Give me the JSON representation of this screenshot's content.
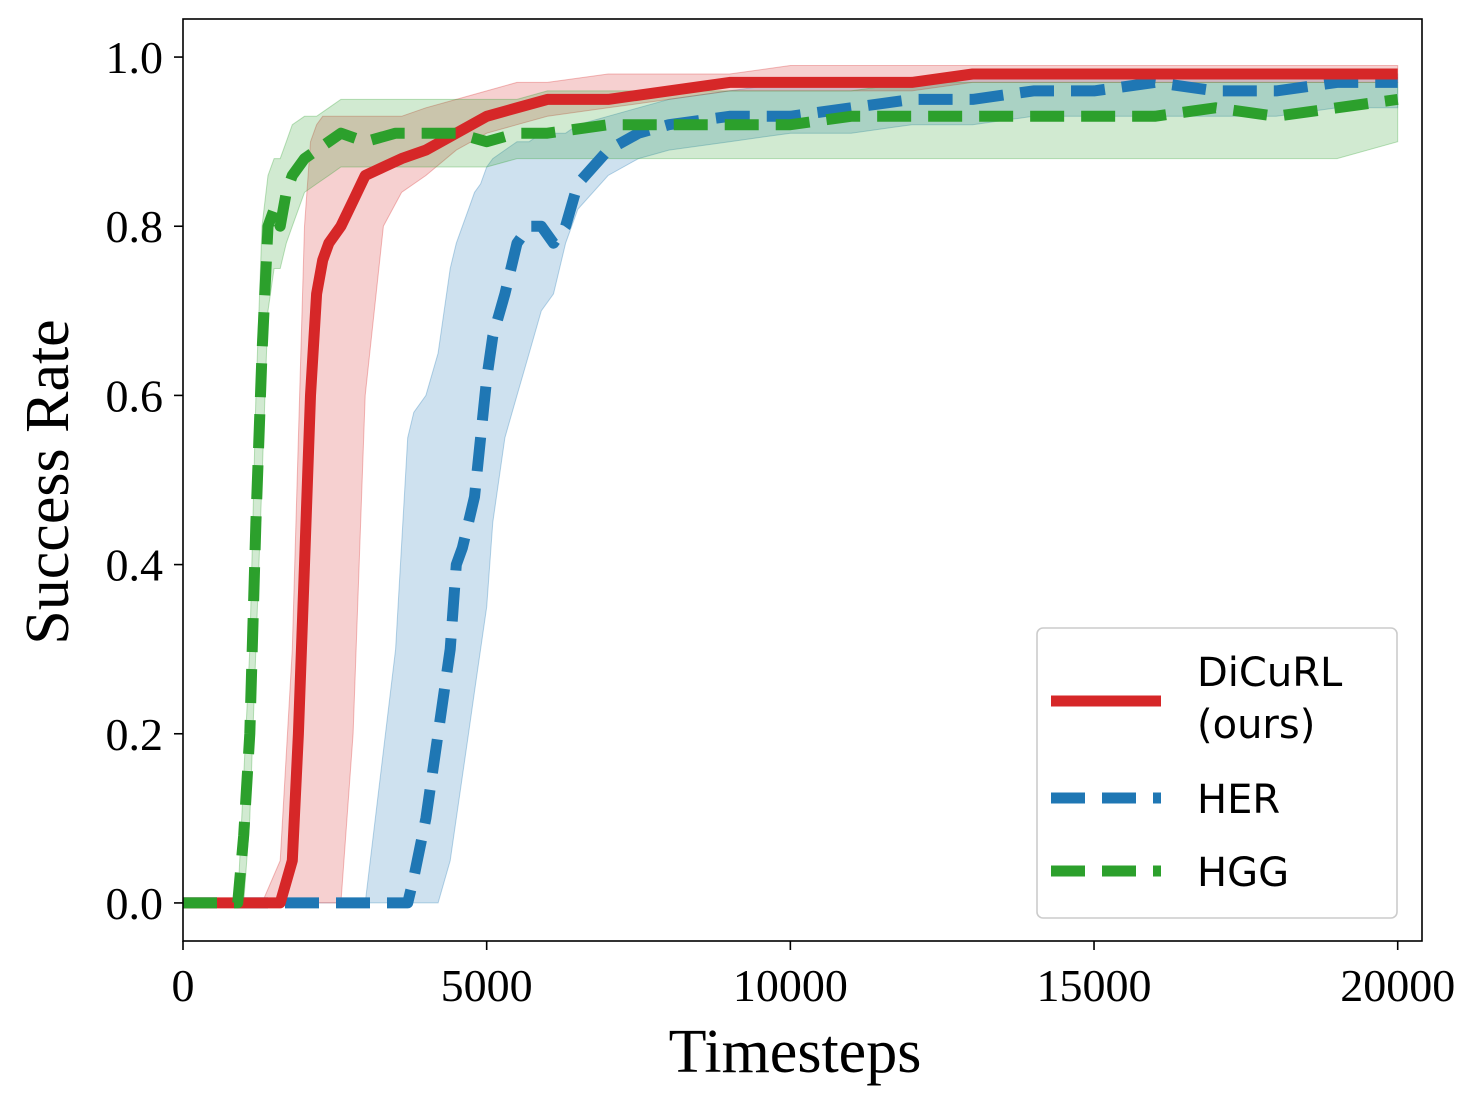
{
  "chart_data": {
    "type": "line",
    "xlabel": "Timesteps",
    "ylabel": "Success Rate",
    "xlim": [
      0,
      20400
    ],
    "ylim": [
      -0.045,
      1.045
    ],
    "xticks": [
      0,
      5000,
      10000,
      15000,
      20000
    ],
    "xtick_labels": [
      "0",
      "5000",
      "10000",
      "15000",
      "20000"
    ],
    "yticks": [
      0.0,
      0.2,
      0.4,
      0.6,
      0.8,
      1.0
    ],
    "ytick_labels": [
      "0.0",
      "0.2",
      "0.4",
      "0.6",
      "0.8",
      "1.0"
    ],
    "grid": false,
    "legend_position": "lower-right",
    "series": [
      {
        "name": "DiCuRL\n(ours)",
        "color": "#d62728",
        "linestyle": "solid",
        "x": [
          0,
          900,
          1300,
          1600,
          1800,
          1900,
          2000,
          2100,
          2200,
          2300,
          2400,
          2600,
          2800,
          3000,
          3300,
          3600,
          4000,
          4500,
          5000,
          5500,
          6000,
          7000,
          8000,
          9000,
          10000,
          11000,
          12000,
          13000,
          14000,
          15000,
          16000,
          17000,
          18000,
          19000,
          20000
        ],
        "y": [
          0.0,
          0.0,
          0.0,
          0.0,
          0.05,
          0.2,
          0.4,
          0.6,
          0.72,
          0.76,
          0.78,
          0.8,
          0.83,
          0.86,
          0.87,
          0.88,
          0.89,
          0.91,
          0.93,
          0.94,
          0.95,
          0.95,
          0.96,
          0.97,
          0.97,
          0.97,
          0.97,
          0.98,
          0.98,
          0.98,
          0.98,
          0.98,
          0.98,
          0.98,
          0.98
        ],
        "lower": [
          0.0,
          0.0,
          0.0,
          0.0,
          0.0,
          0.0,
          0.0,
          0.0,
          0.0,
          0.0,
          0.0,
          0.0,
          0.2,
          0.6,
          0.8,
          0.84,
          0.86,
          0.89,
          0.91,
          0.92,
          0.93,
          0.94,
          0.95,
          0.96,
          0.96,
          0.96,
          0.96,
          0.97,
          0.97,
          0.97,
          0.97,
          0.97,
          0.97,
          0.97,
          0.97
        ],
        "upper": [
          0.0,
          0.0,
          0.0,
          0.05,
          0.3,
          0.55,
          0.8,
          0.9,
          0.92,
          0.93,
          0.93,
          0.93,
          0.93,
          0.93,
          0.93,
          0.93,
          0.94,
          0.95,
          0.96,
          0.97,
          0.97,
          0.98,
          0.98,
          0.98,
          0.99,
          0.99,
          0.99,
          0.99,
          0.99,
          0.99,
          0.99,
          0.99,
          0.99,
          0.99,
          0.99
        ]
      },
      {
        "name": "HER",
        "color": "#1f77b4",
        "linestyle": "dashed",
        "x": [
          0,
          1000,
          2000,
          2500,
          3000,
          3500,
          3700,
          3800,
          4000,
          4200,
          4400,
          4500,
          4600,
          4700,
          4800,
          4900,
          5000,
          5100,
          5300,
          5500,
          5700,
          5900,
          6100,
          6300,
          6500,
          7000,
          7500,
          8000,
          9000,
          10000,
          11000,
          12000,
          13000,
          14000,
          15000,
          16000,
          17000,
          18000,
          19000,
          20000
        ],
        "y": [
          0.0,
          0.0,
          0.0,
          0.0,
          0.0,
          0.0,
          0.0,
          0.03,
          0.1,
          0.2,
          0.3,
          0.4,
          0.42,
          0.45,
          0.48,
          0.55,
          0.62,
          0.67,
          0.72,
          0.78,
          0.8,
          0.8,
          0.78,
          0.8,
          0.85,
          0.89,
          0.91,
          0.92,
          0.93,
          0.93,
          0.94,
          0.95,
          0.95,
          0.96,
          0.96,
          0.97,
          0.96,
          0.96,
          0.97,
          0.97
        ],
        "lower": [
          0.0,
          0.0,
          0.0,
          0.0,
          0.0,
          0.0,
          0.0,
          0.0,
          0.0,
          0.0,
          0.05,
          0.1,
          0.15,
          0.2,
          0.25,
          0.3,
          0.35,
          0.45,
          0.55,
          0.6,
          0.65,
          0.7,
          0.72,
          0.78,
          0.82,
          0.86,
          0.88,
          0.89,
          0.9,
          0.91,
          0.91,
          0.92,
          0.92,
          0.93,
          0.93,
          0.93,
          0.93,
          0.93,
          0.94,
          0.94
        ],
        "upper": [
          0.0,
          0.0,
          0.0,
          0.0,
          0.0,
          0.3,
          0.55,
          0.58,
          0.6,
          0.65,
          0.75,
          0.78,
          0.8,
          0.82,
          0.84,
          0.85,
          0.87,
          0.88,
          0.89,
          0.9,
          0.9,
          0.91,
          0.91,
          0.91,
          0.92,
          0.93,
          0.94,
          0.95,
          0.96,
          0.97,
          0.97,
          0.97,
          0.98,
          0.98,
          0.98,
          0.98,
          0.98,
          0.98,
          0.98,
          0.98
        ]
      },
      {
        "name": "HGG",
        "color": "#2ca02c",
        "linestyle": "dashed",
        "x": [
          0,
          800,
          900,
          1000,
          1100,
          1200,
          1300,
          1400,
          1500,
          1600,
          1700,
          1800,
          2000,
          2200,
          2400,
          2600,
          3000,
          3500,
          4000,
          4500,
          5000,
          5500,
          6000,
          7000,
          8000,
          9000,
          10000,
          11000,
          12000,
          13000,
          14000,
          15000,
          16000,
          17000,
          18000,
          19000,
          20000
        ],
        "y": [
          0.0,
          0.0,
          0.0,
          0.08,
          0.2,
          0.45,
          0.65,
          0.8,
          0.82,
          0.8,
          0.84,
          0.86,
          0.88,
          0.89,
          0.9,
          0.91,
          0.9,
          0.91,
          0.91,
          0.91,
          0.9,
          0.91,
          0.91,
          0.92,
          0.92,
          0.92,
          0.92,
          0.93,
          0.93,
          0.93,
          0.93,
          0.93,
          0.93,
          0.94,
          0.93,
          0.94,
          0.95
        ],
        "lower": [
          0.0,
          0.0,
          0.0,
          0.0,
          0.1,
          0.3,
          0.5,
          0.7,
          0.75,
          0.75,
          0.78,
          0.8,
          0.84,
          0.85,
          0.86,
          0.87,
          0.87,
          0.87,
          0.87,
          0.87,
          0.87,
          0.88,
          0.88,
          0.88,
          0.88,
          0.88,
          0.88,
          0.88,
          0.88,
          0.88,
          0.88,
          0.88,
          0.88,
          0.88,
          0.88,
          0.88,
          0.9
        ],
        "upper": [
          0.0,
          0.0,
          0.0,
          0.15,
          0.3,
          0.6,
          0.8,
          0.86,
          0.88,
          0.88,
          0.9,
          0.92,
          0.93,
          0.93,
          0.94,
          0.95,
          0.95,
          0.95,
          0.95,
          0.95,
          0.95,
          0.95,
          0.96,
          0.96,
          0.96,
          0.96,
          0.96,
          0.96,
          0.97,
          0.97,
          0.97,
          0.97,
          0.97,
          0.97,
          0.97,
          0.97,
          0.97
        ]
      }
    ]
  }
}
